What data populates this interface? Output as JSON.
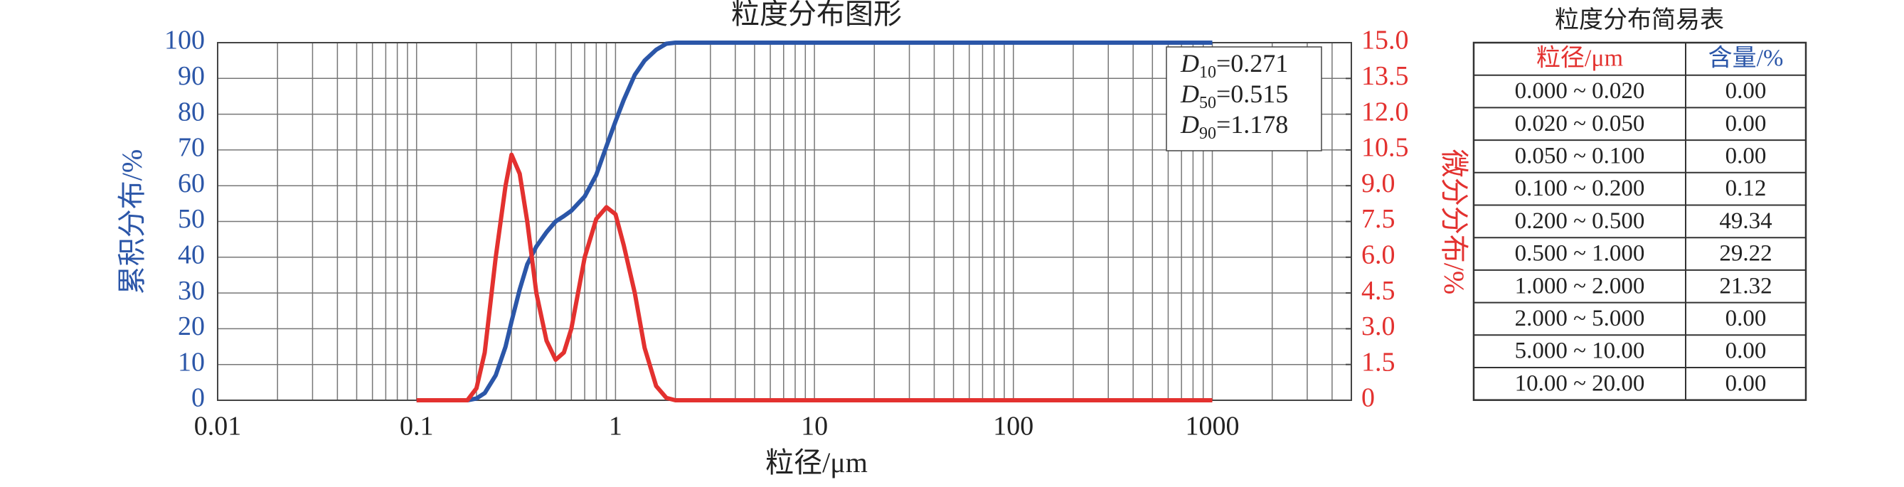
{
  "chart_data": {
    "type": "line",
    "title": "粒度分布图形",
    "xlabel": "粒径/μm",
    "ylabel": "累积分布/%",
    "y2label": "微分分布/%",
    "xscale": "log",
    "grid": true,
    "xlim": [
      0.01,
      5000
    ],
    "xticks": [
      0.01,
      0.1,
      1,
      10,
      100,
      1000
    ],
    "ylim": [
      0,
      100
    ],
    "yticks": [
      0,
      10,
      20,
      30,
      40,
      50,
      60,
      70,
      80,
      90,
      100
    ],
    "y2lim": [
      0,
      15
    ],
    "y2ticks": [
      0,
      1.5,
      {
        "value": 3,
        "label": "3.0"
      },
      4.5,
      {
        "value": 6,
        "label": "6.0"
      },
      7.5,
      {
        "value": 9,
        "label": "9.0"
      },
      10.5,
      {
        "value": 12,
        "label": "12.0"
      },
      13.5,
      {
        "value": 15,
        "label": "15.0"
      }
    ],
    "x": [
      0.1,
      0.18,
      0.2,
      0.22,
      0.25,
      0.28,
      0.3,
      0.33,
      0.36,
      0.4,
      0.45,
      0.5,
      0.55,
      0.6,
      0.7,
      0.8,
      0.9,
      1.0,
      1.1,
      1.25,
      1.4,
      1.6,
      1.8,
      2,
      1000
    ],
    "series": [
      {
        "color": "#2b56a8",
        "values": [
          0,
          0,
          0.5,
          2,
          7,
          15,
          22,
          31,
          38,
          43,
          47,
          50,
          51.5,
          53,
          57,
          63,
          71,
          78,
          84,
          91,
          95,
          98,
          99.7,
          100,
          100
        ]
      },
      {
        "color": "#e3312f",
        "axis": "y2",
        "values": [
          0,
          0,
          0.5,
          2,
          6,
          9,
          10.3,
          9.5,
          7.5,
          4.5,
          2.5,
          1.7,
          2.0,
          3.0,
          6.0,
          7.6,
          8.1,
          7.8,
          6.5,
          4.5,
          2.2,
          0.6,
          0.1,
          0,
          0
        ]
      }
    ],
    "annotations": [
      {
        "symbol": "D",
        "subscript": "10",
        "text": "=0.271"
      },
      {
        "symbol": "D",
        "subscript": "50",
        "text": "=0.515"
      },
      {
        "symbol": "D",
        "subscript": "90",
        "text": "=1.178"
      }
    ]
  },
  "table": {
    "title": "粒度分布简易表",
    "header": [
      "粒径/μm",
      "含量/%"
    ],
    "header_colors": [
      "#e3312f",
      "#2b56a8"
    ],
    "rows": [
      [
        "0.000 ~ 0.020",
        "0.00"
      ],
      [
        "0.020 ~ 0.050",
        "0.00"
      ],
      [
        "0.050 ~ 0.100",
        "0.00"
      ],
      [
        "0.100 ~ 0.200",
        "0.12"
      ],
      [
        "0.200 ~ 0.500",
        "49.34"
      ],
      [
        "0.500 ~ 1.000",
        "29.22"
      ],
      [
        "1.000 ~ 2.000",
        "21.32"
      ],
      [
        "2.000 ~ 5.000",
        "0.00"
      ],
      [
        "5.000 ~ 10.00",
        "0.00"
      ],
      [
        "10.00 ~ 20.00",
        "0.00"
      ]
    ]
  }
}
